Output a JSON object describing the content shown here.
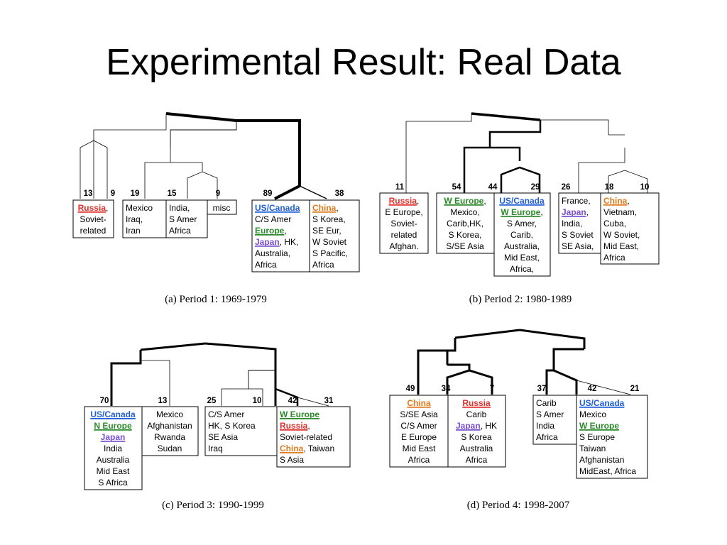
{
  "title": "Experimental Result: Real Data",
  "colors": {
    "red": "#e0302b",
    "blue": "#1f5fd6",
    "green": "#2a8a2a",
    "orange": "#e07a1c",
    "purple": "#7a4fd1"
  },
  "panels": [
    {
      "caption": "(a) Period 1: 1969-1979",
      "counts": [
        "13",
        "9",
        "19",
        "15",
        "9",
        "89",
        "38"
      ],
      "clusters": [
        [
          {
            "t": "Russia",
            "c": "red"
          },
          {
            "t": ","
          }
        ],
        "Soviet-",
        "related",
        "Mexico",
        "Iraq,",
        "Iran",
        "India,",
        "S Amer",
        "Africa",
        "misc",
        [
          {
            "t": "US/",
            "c": "blue"
          },
          {
            "t": "Canada",
            "c": "blue"
          }
        ],
        "C/S Amer",
        [
          {
            "t": "Europe",
            "c": "green"
          },
          {
            "t": ","
          }
        ],
        [
          {
            "t": "Japan",
            "c": "purple"
          },
          {
            "t": ", HK,"
          }
        ],
        "Australia,",
        "Africa",
        [
          {
            "t": "China",
            "c": "orange"
          },
          {
            "t": ","
          }
        ],
        "S Korea,",
        "SE Eur,",
        "W Soviet",
        "S Pacific,",
        "Africa"
      ]
    },
    {
      "caption": "(b) Period 2: 1980-1989",
      "counts": [
        "11",
        "54",
        "44",
        "29",
        "26",
        "18",
        "10"
      ],
      "clusters": [
        [
          {
            "t": "Russia",
            "c": "red"
          },
          {
            "t": ","
          }
        ],
        "E Europe,",
        "Soviet-",
        "related",
        "Afghan.",
        [
          {
            "t": "W Europe",
            "c": "green"
          },
          {
            "t": ","
          }
        ],
        "Mexico,",
        "Carib,HK,",
        "S Korea,",
        "S/SE Asia",
        [
          {
            "t": "US/Canada",
            "c": "blue"
          }
        ],
        [
          {
            "t": "W Europe",
            "c": "green"
          },
          {
            "t": ","
          }
        ],
        "S Amer,",
        "Carib,",
        "Australia,",
        "Mid East,",
        "Africa,",
        "France,",
        [
          {
            "t": "Japan",
            "c": "purple"
          },
          {
            "t": ","
          }
        ],
        "India,",
        "S Soviet",
        "SE Asia,",
        [
          {
            "t": "China",
            "c": "orange"
          },
          {
            "t": ","
          }
        ],
        "Vietnam,",
        "Cuba,",
        "W Soviet,",
        "Mid East,",
        "Africa"
      ]
    },
    {
      "caption": "(c) Period 3: 1990-1999",
      "counts": [
        "70",
        "13",
        "25",
        "10",
        "42",
        "31"
      ],
      "clusters": [
        [
          {
            "t": "US/",
            "c": "blue"
          },
          {
            "t": "Canada",
            "c": "blue"
          }
        ],
        [
          {
            "t": "N Europe",
            "c": "green"
          }
        ],
        [
          {
            "t": "Japan",
            "c": "purple"
          }
        ],
        "India",
        "Australia",
        "Mid East",
        "S Africa",
        "Mexico",
        "Afghanistan",
        "Rwanda",
        "Sudan",
        "C/S Amer",
        "HK, S Korea",
        "SE Asia",
        "Iraq",
        [
          {
            "t": "W Europe",
            "c": "green"
          }
        ],
        [
          {
            "t": "Russia",
            "c": "red"
          },
          {
            "t": ","
          }
        ],
        "Soviet-related",
        [
          {
            "t": "China",
            "c": "orange"
          },
          {
            "t": ", Taiwan"
          }
        ],
        "S Asia"
      ]
    },
    {
      "caption": "(d) Period 4: 1998-2007",
      "counts": [
        "49",
        "34",
        "7",
        "37",
        "42",
        "21"
      ],
      "clusters": [
        [
          {
            "t": "China",
            "c": "orange"
          }
        ],
        "S/SE Asia",
        "C/S Amer",
        "E Europe",
        "Mid East",
        "Africa",
        [
          {
            "t": "Russia",
            "c": "red"
          }
        ],
        "Carib",
        [
          {
            "t": "Japan",
            "c": "purple"
          },
          {
            "t": ", HK"
          }
        ],
        "S Korea",
        "Australia",
        "Africa",
        "Carib",
        "S Amer",
        "India",
        "Africa",
        [
          {
            "t": "US/Canada",
            "c": "blue"
          }
        ],
        "Mexico",
        [
          {
            "t": "W Europe",
            "c": "green"
          }
        ],
        "S Europe",
        "Taiwan",
        "Afghanistan",
        "MidEast, Africa"
      ]
    }
  ]
}
